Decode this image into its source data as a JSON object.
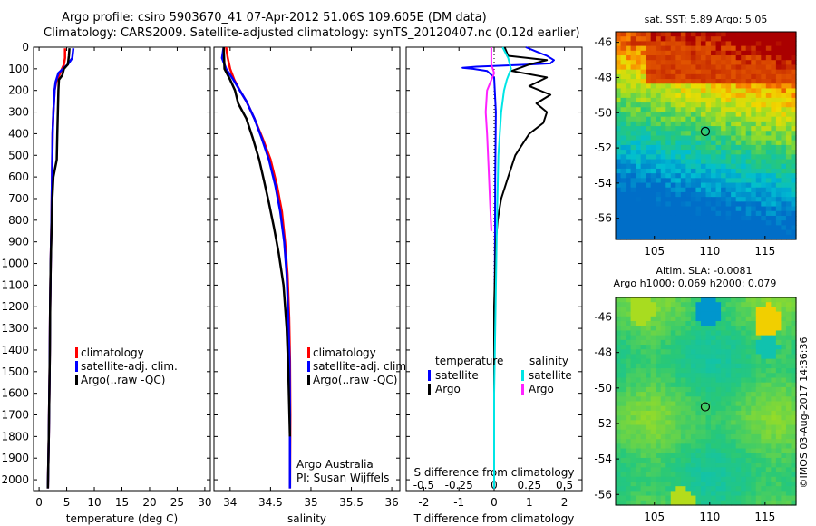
{
  "header": {
    "line1": "Argo profile: csiro 5903670_41 07-Apr-2012 51.06S 109.605E (DM data)",
    "line2": "Climatology: CARS2009. Satellite-adjusted climatology: synTS_20120407.nc (0.12d earlier)"
  },
  "colors": {
    "climatology": "#ff0000",
    "satellite_adj": "#0000ff",
    "argo": "#000000",
    "t_satellite": "#0000ff",
    "t_argo": "#000000",
    "s_satellite": "#00e5e5",
    "s_argo": "#ff22ff"
  },
  "chart_data": [
    {
      "id": "temperature",
      "type": "line",
      "xlabel": "temperature (deg C)",
      "ylabel": "",
      "xlim": [
        -1,
        31
      ],
      "ylim": [
        2050,
        0
      ],
      "xticks": [
        0,
        5,
        10,
        15,
        20,
        25,
        30
      ],
      "yticks": [
        0,
        100,
        200,
        300,
        400,
        500,
        600,
        700,
        800,
        900,
        1000,
        1100,
        1200,
        1300,
        1400,
        1500,
        1600,
        1700,
        1800,
        1900,
        2000
      ],
      "legend": {
        "position": "lower-left",
        "entries": [
          "climatology",
          "satellite-adj. clim.",
          "Argo(..raw -QC)"
        ]
      },
      "series": [
        {
          "name": "climatology",
          "color_key": "climatology",
          "x": [
            4.7,
            4.7,
            4.5,
            3.8,
            3.1,
            2.8,
            2.6,
            2.45,
            2.35,
            2.25,
            2.1,
            2.0,
            1.9,
            1.75,
            1.6
          ],
          "y": [
            5,
            50,
            80,
            120,
            160,
            200,
            300,
            400,
            600,
            800,
            1000,
            1200,
            1500,
            1800,
            2040
          ]
        },
        {
          "name": "satellite-adj. clim.",
          "color_key": "satellite_adj",
          "x": [
            6.2,
            6.0,
            5.2,
            3.5,
            3.0,
            2.8,
            2.6,
            2.45,
            2.35,
            2.25,
            2.1,
            2.0,
            1.9,
            1.75,
            1.6
          ],
          "y": [
            5,
            50,
            80,
            120,
            160,
            200,
            300,
            400,
            600,
            800,
            1000,
            1200,
            1500,
            1800,
            2040
          ]
        },
        {
          "name": "Argo(..raw -QC)",
          "color_key": "argo",
          "x": [
            5.5,
            5.4,
            5.2,
            4.5,
            4.2,
            3.6,
            3.5,
            3.4,
            3.3,
            3.2,
            2.6,
            2.4,
            2.3,
            2.2,
            2.1,
            2.0,
            1.95,
            1.9,
            1.75,
            1.6
          ],
          "y": [
            5,
            40,
            80,
            100,
            130,
            150,
            200,
            300,
            400,
            520,
            600,
            700,
            800,
            900,
            1000,
            1200,
            1400,
            1500,
            1800,
            2040
          ]
        }
      ]
    },
    {
      "id": "salinity",
      "type": "line",
      "xlabel": "salinity",
      "xlim": [
        33.8,
        36.1
      ],
      "ylim": [
        2050,
        0
      ],
      "xticks": [
        34,
        34.5,
        35,
        35.5,
        36
      ],
      "legend": {
        "position": "lower-right",
        "entries": [
          "climatology",
          "satellite-adj. clim.",
          "Argo(..raw -QC)"
        ]
      },
      "annotation": [
        "Argo Australia",
        "PI: Susan Wijffels"
      ],
      "series": [
        {
          "name": "climatology",
          "color_key": "climatology",
          "x": [
            33.95,
            33.97,
            34.0,
            34.05,
            34.12,
            34.2,
            34.3,
            34.4,
            34.5,
            34.58,
            34.64,
            34.68,
            34.71,
            34.73,
            34.74,
            34.745,
            34.74
          ],
          "y": [
            0,
            50,
            100,
            150,
            200,
            250,
            330,
            420,
            520,
            640,
            760,
            900,
            1050,
            1250,
            1450,
            1700,
            2040
          ]
        },
        {
          "name": "satellite-adj. clim.",
          "color_key": "satellite_adj",
          "x": [
            33.92,
            33.9,
            33.95,
            34.04,
            34.12,
            34.2,
            34.3,
            34.39,
            34.48,
            34.56,
            34.62,
            34.67,
            34.7,
            34.72,
            34.735,
            34.74,
            34.74
          ],
          "y": [
            0,
            50,
            100,
            150,
            200,
            250,
            330,
            420,
            520,
            640,
            760,
            900,
            1050,
            1250,
            1450,
            1700,
            2040
          ]
        },
        {
          "name": "Argo(..raw -QC)",
          "color_key": "argo",
          "x": [
            33.92,
            33.93,
            34.0,
            34.06,
            34.1,
            34.2,
            34.28,
            34.36,
            34.42,
            34.48,
            34.54,
            34.6,
            34.66,
            34.7,
            34.72,
            34.74
          ],
          "y": [
            0,
            100,
            150,
            200,
            260,
            330,
            420,
            520,
            620,
            720,
            830,
            950,
            1100,
            1300,
            1500,
            1800
          ]
        }
      ]
    },
    {
      "id": "difference",
      "type": "line",
      "xlabel": "T difference from climatology",
      "xlabel_top": "S difference from climatology",
      "xlim": [
        -2.5,
        2.5
      ],
      "ylim": [
        2050,
        0
      ],
      "xticks": [
        -2,
        -1,
        0,
        1,
        2
      ],
      "xticks_s": [
        -0.5,
        -0.25,
        0,
        0.25,
        0.5
      ],
      "legend": {
        "position": "lower-center",
        "temperature_title": "temperature",
        "salinity_title": "salinity",
        "temperature_entries": [
          "satellite",
          "Argo"
        ],
        "salinity_entries": [
          "satellite",
          "Argo"
        ]
      },
      "series": [
        {
          "name": "satellite",
          "color_key": "t_satellite",
          "x": [
            0.9,
            1.2,
            1.5,
            1.7,
            1.6,
            1.0,
            0.3,
            -0.5,
            -0.9,
            -0.6,
            -0.2,
            0.0,
            0.05,
            0.03,
            0.02,
            0.0,
            0.0
          ],
          "y": [
            0,
            20,
            40,
            60,
            75,
            80,
            85,
            90,
            95,
            100,
            110,
            140,
            300,
            600,
            1000,
            1500,
            2040
          ]
        },
        {
          "name": "Argo",
          "color_key": "t_argo",
          "x": [
            0.3,
            0.4,
            1.5,
            1.0,
            0.5,
            1.5,
            1.0,
            1.6,
            1.2,
            1.5,
            1.4,
            1.0,
            0.8,
            0.6,
            0.4,
            0.2,
            0.1,
            0.05,
            0.0,
            0.0
          ],
          "y": [
            0,
            40,
            60,
            80,
            110,
            140,
            180,
            220,
            260,
            300,
            350,
            400,
            450,
            500,
            600,
            700,
            800,
            900,
            1200,
            1700
          ]
        },
        {
          "name": "s-satellite",
          "color_key": "s_satellite",
          "x": [
            0.06,
            0.1,
            0.12,
            0.09,
            0.07,
            0.05,
            0.03,
            0.02,
            0.01,
            0.0,
            0.0
          ],
          "y": [
            0,
            50,
            100,
            150,
            200,
            300,
            500,
            800,
            1200,
            1600,
            2040
          ]
        },
        {
          "name": "s-Argo",
          "color_key": "s_argo",
          "x": [
            -0.02,
            -0.02,
            0.0,
            -0.05,
            -0.06,
            -0.05,
            -0.04,
            -0.03,
            -0.02
          ],
          "y": [
            0,
            80,
            120,
            200,
            300,
            400,
            550,
            700,
            850
          ]
        }
      ]
    },
    {
      "id": "sst_map",
      "type": "heatmap",
      "title": "sat. SST: 5.89  Argo: 5.05",
      "xlim": [
        101.5,
        117.8
      ],
      "ylim": [
        -57.2,
        -45.4
      ],
      "xticks": [
        105,
        110,
        115
      ],
      "yticks": [
        -46,
        -48,
        -50,
        -52,
        -54,
        -56
      ],
      "marker": {
        "lon": 109.605,
        "lat": -51.06
      }
    },
    {
      "id": "sla_map",
      "type": "heatmap",
      "title": "Altim. SLA: -0.0081",
      "subtitle": "Argo h1000: 0.069  h2000: 0.079",
      "xlim": [
        101.5,
        117.8
      ],
      "ylim": [
        -56.6,
        -44.9
      ],
      "xticks": [
        105,
        110,
        115
      ],
      "yticks": [
        -46,
        -48,
        -50,
        -52,
        -54,
        -56
      ],
      "marker": {
        "lon": 109.605,
        "lat": -51.06
      }
    }
  ],
  "footer": {
    "watermark": "©IMOS 03-Aug-2017 14:36:36"
  }
}
